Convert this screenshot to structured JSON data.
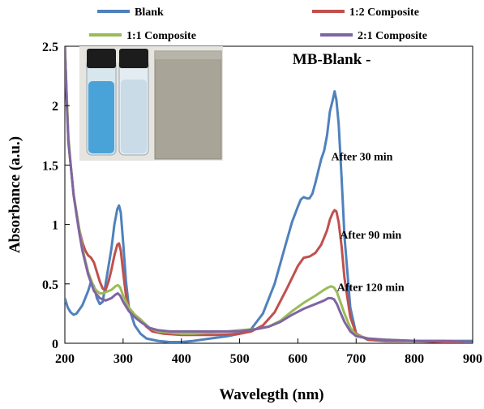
{
  "chart_data": {
    "type": "line",
    "xlabel": "Wavelegth (nm)",
    "ylabel": "Absorbance (a.u.)",
    "xlim": [
      200,
      900
    ],
    "ylim": [
      0,
      2.5
    ],
    "x_ticks": [
      200,
      300,
      400,
      500,
      600,
      700,
      800,
      900
    ],
    "y_ticks": [
      0,
      0.5,
      1,
      1.5,
      2,
      2.5
    ],
    "grid": false,
    "legend_position": "top",
    "series": [
      {
        "name": "Blank",
        "color": "#4f81bd",
        "x": [
          200,
          205,
          210,
          215,
          220,
          230,
          240,
          245,
          250,
          255,
          260,
          265,
          270,
          280,
          285,
          290,
          293,
          296,
          300,
          305,
          310,
          320,
          330,
          340,
          360,
          380,
          400,
          420,
          450,
          480,
          500,
          520,
          540,
          560,
          580,
          590,
          600,
          605,
          610,
          615,
          620,
          625,
          630,
          635,
          640,
          645,
          650,
          655,
          660,
          663,
          666,
          670,
          675,
          680,
          690,
          700,
          720,
          750,
          800,
          850,
          900
        ],
        "y": [
          0.38,
          0.3,
          0.26,
          0.24,
          0.25,
          0.32,
          0.44,
          0.52,
          0.48,
          0.38,
          0.33,
          0.35,
          0.5,
          0.8,
          1.0,
          1.13,
          1.16,
          1.1,
          0.85,
          0.52,
          0.3,
          0.15,
          0.08,
          0.04,
          0.02,
          0.01,
          0.01,
          0.02,
          0.04,
          0.06,
          0.08,
          0.12,
          0.25,
          0.5,
          0.85,
          1.02,
          1.15,
          1.21,
          1.23,
          1.22,
          1.22,
          1.26,
          1.35,
          1.45,
          1.55,
          1.62,
          1.75,
          1.95,
          2.05,
          2.12,
          2.05,
          1.85,
          1.4,
          0.9,
          0.3,
          0.08,
          0.03,
          0.02,
          0.02,
          0.02,
          0.02
        ]
      },
      {
        "name": "1:2 Composite",
        "color": "#c0504d",
        "x": [
          200,
          203,
          206,
          210,
          215,
          220,
          225,
          230,
          235,
          240,
          245,
          250,
          255,
          260,
          265,
          270,
          275,
          280,
          285,
          290,
          293,
          296,
          300,
          305,
          310,
          320,
          330,
          340,
          350,
          370,
          400,
          430,
          460,
          500,
          520,
          540,
          560,
          580,
          600,
          610,
          620,
          630,
          640,
          650,
          655,
          660,
          663,
          666,
          670,
          675,
          680,
          690,
          700,
          720,
          750,
          800,
          850,
          900
        ],
        "y": [
          2.5,
          2.1,
          1.7,
          1.5,
          1.25,
          1.1,
          0.95,
          0.85,
          0.78,
          0.74,
          0.72,
          0.68,
          0.6,
          0.52,
          0.46,
          0.45,
          0.52,
          0.62,
          0.74,
          0.83,
          0.84,
          0.78,
          0.6,
          0.4,
          0.3,
          0.24,
          0.2,
          0.14,
          0.1,
          0.08,
          0.07,
          0.07,
          0.07,
          0.08,
          0.1,
          0.15,
          0.26,
          0.45,
          0.65,
          0.72,
          0.73,
          0.76,
          0.83,
          0.95,
          1.04,
          1.1,
          1.12,
          1.11,
          1.02,
          0.82,
          0.55,
          0.22,
          0.08,
          0.03,
          0.02,
          0.02,
          0.01,
          0.01
        ]
      },
      {
        "name": "1:1 Composite",
        "color": "#9bbb59",
        "x": [
          200,
          203,
          206,
          210,
          215,
          220,
          225,
          230,
          240,
          250,
          255,
          260,
          265,
          270,
          280,
          287,
          291,
          295,
          300,
          310,
          320,
          330,
          345,
          360,
          380,
          400,
          420,
          450,
          480,
          500,
          530,
          550,
          570,
          590,
          610,
          630,
          645,
          652,
          657,
          662,
          667,
          672,
          680,
          690,
          700,
          720,
          750,
          800,
          850,
          900
        ],
        "y": [
          2.5,
          2.1,
          1.75,
          1.5,
          1.25,
          1.1,
          0.95,
          0.8,
          0.6,
          0.47,
          0.44,
          0.42,
          0.42,
          0.43,
          0.45,
          0.48,
          0.49,
          0.47,
          0.4,
          0.3,
          0.24,
          0.2,
          0.13,
          0.1,
          0.09,
          0.08,
          0.08,
          0.09,
          0.1,
          0.11,
          0.12,
          0.14,
          0.19,
          0.27,
          0.34,
          0.4,
          0.45,
          0.47,
          0.48,
          0.47,
          0.43,
          0.36,
          0.25,
          0.13,
          0.07,
          0.04,
          0.03,
          0.02,
          0.02,
          0.01
        ]
      },
      {
        "name": "2:1 Composite",
        "color": "#8064a2",
        "x": [
          200,
          203,
          206,
          210,
          215,
          220,
          225,
          230,
          240,
          250,
          260,
          270,
          280,
          287,
          291,
          295,
          300,
          310,
          320,
          330,
          345,
          360,
          380,
          400,
          420,
          450,
          480,
          500,
          530,
          550,
          570,
          590,
          610,
          630,
          645,
          652,
          657,
          662,
          667,
          672,
          680,
          690,
          700,
          720,
          750,
          800,
          850,
          900
        ],
        "y": [
          2.5,
          2.05,
          1.7,
          1.5,
          1.25,
          1.08,
          0.92,
          0.78,
          0.58,
          0.44,
          0.38,
          0.36,
          0.38,
          0.41,
          0.42,
          0.4,
          0.35,
          0.27,
          0.22,
          0.18,
          0.13,
          0.11,
          0.1,
          0.1,
          0.1,
          0.1,
          0.1,
          0.1,
          0.12,
          0.14,
          0.18,
          0.24,
          0.29,
          0.33,
          0.36,
          0.38,
          0.38,
          0.37,
          0.33,
          0.27,
          0.18,
          0.1,
          0.06,
          0.04,
          0.03,
          0.02,
          0.02,
          0.01
        ]
      }
    ],
    "annotations": [
      {
        "id": "mb-blank",
        "text": "MB-Blank -",
        "x": 658,
        "y": 2.35
      },
      {
        "id": "after-30",
        "text": "After 30 min",
        "x": 710,
        "y": 1.54
      },
      {
        "id": "after-90",
        "text": "After 90 min",
        "x": 725,
        "y": 0.88
      },
      {
        "id": "after-120",
        "text": "After 120 min",
        "x": 725,
        "y": 0.44
      }
    ]
  },
  "inset_photo": {
    "vial_colors": [
      "#4aa3d8",
      "#c8dbe6"
    ],
    "cap_color": "#1c1c1c",
    "magnet_color": "#a8a498"
  }
}
